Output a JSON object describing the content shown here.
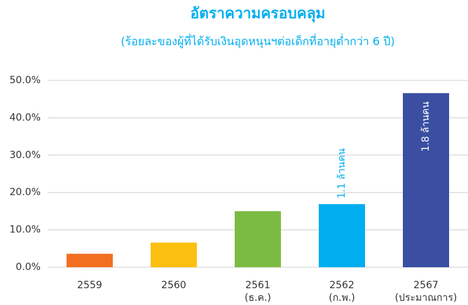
{
  "chart_data": {
    "type": "bar",
    "title": "อัตราความครอบคลุม",
    "subtitle": "(ร้อยละของผู้ที่ได้รับเงินอุดหนุนฯต่อเด็กที่อายุต่ำกว่า 6 ปี)",
    "categories": [
      "2559",
      "2560",
      "2561",
      "2562",
      "2567"
    ],
    "category_notes": [
      null,
      null,
      "(ธ.ค.)",
      "(ก.พ.)",
      "(ประมาณการ)"
    ],
    "values": [
      3.6,
      6.6,
      15.0,
      16.9,
      46.6
    ],
    "colors": [
      "#f26f21",
      "#fbbf0f",
      "#7cbb42",
      "#00aeef",
      "#3a4fa1"
    ],
    "ylim": [
      0,
      50
    ],
    "yticks": [
      {
        "value": 0,
        "label": "0.0%"
      },
      {
        "value": 10,
        "label": "10.0%"
      },
      {
        "value": 20,
        "label": "20.0%"
      },
      {
        "value": 30,
        "label": "30.0%"
      },
      {
        "value": 40,
        "label": "40.0%"
      },
      {
        "value": 50,
        "label": "50.0%"
      }
    ],
    "grid": true,
    "annotations": [
      {
        "category": "2562",
        "text": "1.1 ล้านคน",
        "color": "#00aeef"
      },
      {
        "category": "2567",
        "text": "1.8 ล้านคน",
        "color": "#ffffff"
      }
    ]
  }
}
